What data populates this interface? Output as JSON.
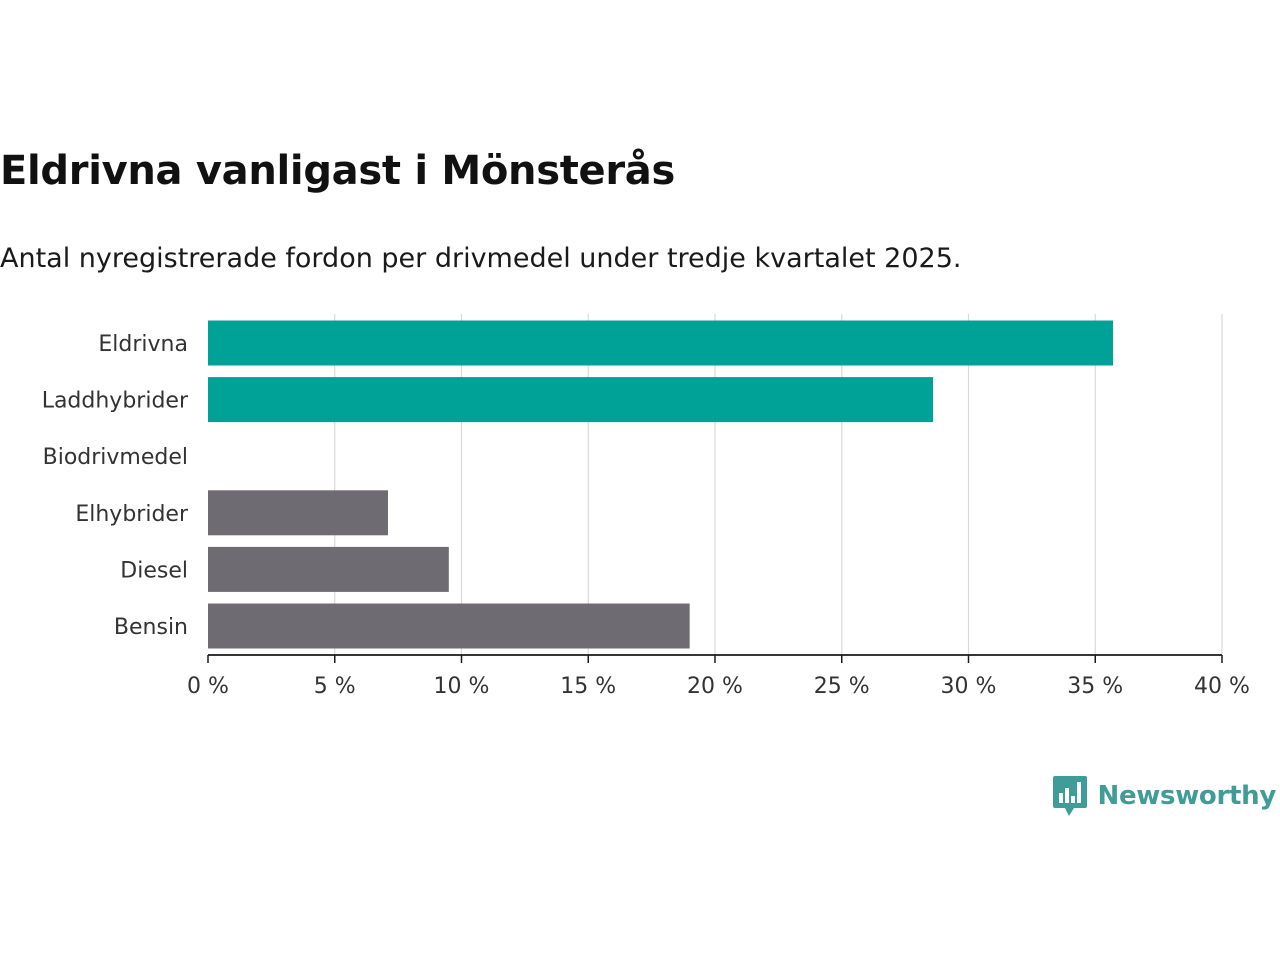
{
  "header": {
    "title": "Eldrivna vanligast i Mönsterås",
    "subtitle": "Antal nyregistrerade fordon per drivmedel under tredje kvartalet 2025."
  },
  "chart_data": {
    "type": "bar",
    "orientation": "horizontal",
    "title": "Eldrivna vanligast i Mönsterås",
    "subtitle": "Antal nyregistrerade fordon per drivmedel under tredje kvartalet 2025.",
    "categories": [
      "Eldrivna",
      "Laddhybrider",
      "Biodrivmedel",
      "Elhybrider",
      "Diesel",
      "Bensin"
    ],
    "values": [
      35.7,
      28.6,
      0,
      7.1,
      9.5,
      19.0
    ],
    "bar_colors": [
      "#00a196",
      "#00a196",
      "#6e6c72",
      "#6e6c72",
      "#6e6c72",
      "#6e6c72"
    ],
    "xlim": [
      0,
      40
    ],
    "xticks": [
      0,
      5,
      10,
      15,
      20,
      25,
      30,
      35,
      40
    ],
    "xtick_labels": [
      "0 %",
      "5 %",
      "10 %",
      "15 %",
      "20 %",
      "25 %",
      "30 %",
      "35 %",
      "40 %"
    ],
    "xlabel": "",
    "ylabel": "",
    "grid": true
  },
  "brand": {
    "name": "Newsworthy",
    "icon": "bar-chart-speech-bubble-icon",
    "color": "#3f9c96"
  }
}
